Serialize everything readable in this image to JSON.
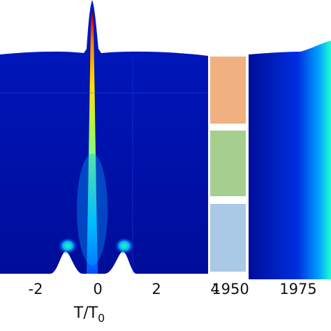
{
  "chart_data": [
    {
      "type": "heatmap",
      "title": "",
      "xlabel": "T/T",
      "xlabel_subscript": "0",
      "ylabel": "",
      "xlim": [
        -3.35,
        4
      ],
      "x_ticks": [
        -2,
        0,
        2,
        4
      ],
      "x_tick_labels": [
        "-2",
        "0",
        "2",
        "4"
      ],
      "colormap": "jet",
      "series": [
        {
          "x": [
            -3.35,
            -2,
            -1.5,
            -1.1,
            -0.6,
            -0.2,
            0,
            0.2,
            0.6,
            1.1,
            1.5,
            2,
            3,
            4
          ],
          "y": [
            0.0,
            0.0,
            0.0,
            0.06,
            0.05,
            0.4,
            1.0,
            0.4,
            0.05,
            0.06,
            0.0,
            0.0,
            0.0,
            0.0
          ]
        }
      ]
    },
    {
      "type": "bar",
      "title": "",
      "orientation": "stacked-horizontal-bands",
      "x_ticks": [
        1950
      ],
      "x_tick_labels": [
        "1950"
      ],
      "bands": [
        {
          "color": "#f0b080"
        },
        {
          "color": "#a6cf8f"
        },
        {
          "color": "#a9c9e6"
        }
      ]
    },
    {
      "type": "heatmap",
      "title": "",
      "x_ticks": [
        1975
      ],
      "x_tick_labels": [
        "1975"
      ],
      "colormap": "jet"
    }
  ]
}
